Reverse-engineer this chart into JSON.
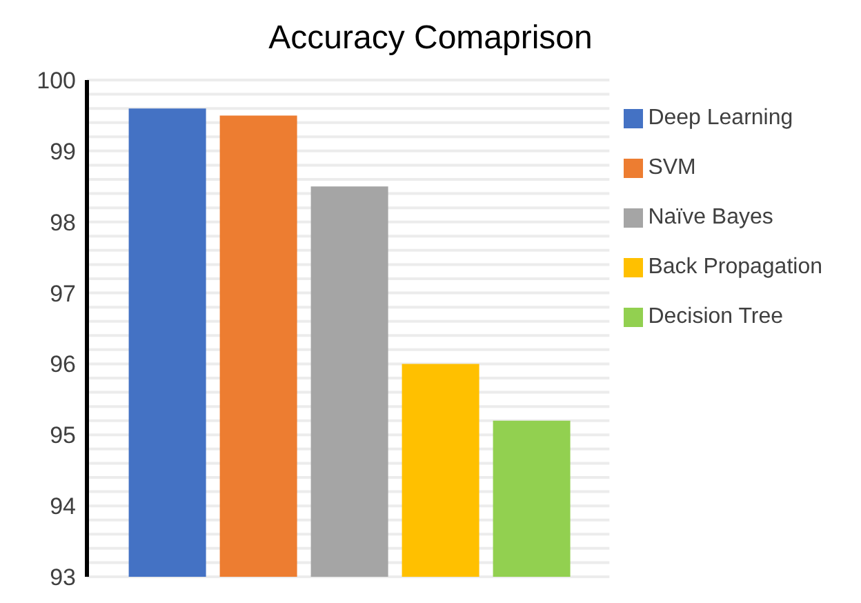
{
  "chart_data": {
    "type": "bar",
    "title": "Accuracy Comaprison",
    "categories": [
      null
    ],
    "series": [
      {
        "name": "Deep Learning",
        "color": "#4472c4",
        "values": [
          99.6
        ]
      },
      {
        "name": "SVM",
        "color": "#ed7d31",
        "values": [
          99.5
        ]
      },
      {
        "name": "Naïve Bayes",
        "color": "#a5a5a5",
        "values": [
          98.5
        ]
      },
      {
        "name": "Back Propagation",
        "color": "#ffc000",
        "values": [
          96
        ]
      },
      {
        "name": "Decision Tree",
        "color": "#92d050",
        "values": [
          95.2
        ]
      }
    ],
    "ylim": [
      93,
      100
    ],
    "yticks": [
      93,
      {
        "value": 93.2,
        "label": null
      },
      {
        "value": 93.4,
        "label": null
      },
      {
        "value": 93.6,
        "label": null
      },
      {
        "value": 93.8,
        "label": null
      },
      94,
      {
        "value": 94.2,
        "label": null
      },
      {
        "value": 94.4,
        "label": null
      },
      {
        "value": 94.6,
        "label": null
      },
      {
        "value": 94.8,
        "label": null
      },
      95,
      {
        "value": 95.2,
        "label": null
      },
      {
        "value": 95.4,
        "label": null
      },
      {
        "value": 95.6,
        "label": null
      },
      {
        "value": 95.8,
        "label": null
      },
      96,
      {
        "value": 96.2,
        "label": null
      },
      {
        "value": 96.4,
        "label": null
      },
      {
        "value": 96.6,
        "label": null
      },
      {
        "value": 96.8,
        "label": null
      },
      97,
      {
        "value": 97.2,
        "label": null
      },
      {
        "value": 97.4,
        "label": null
      },
      {
        "value": 97.6,
        "label": null
      },
      {
        "value": 97.8,
        "label": null
      },
      98,
      {
        "value": 98.2,
        "label": null
      },
      {
        "value": 98.4,
        "label": null
      },
      {
        "value": 98.6,
        "label": null
      },
      {
        "value": 98.8,
        "label": null
      },
      99,
      {
        "value": 99.2,
        "label": null
      },
      {
        "value": 99.4,
        "label": null
      },
      {
        "value": 99.6,
        "label": null
      },
      {
        "value": 99.8,
        "label": null
      },
      100
    ],
    "grid": "y",
    "legend": "right"
  }
}
